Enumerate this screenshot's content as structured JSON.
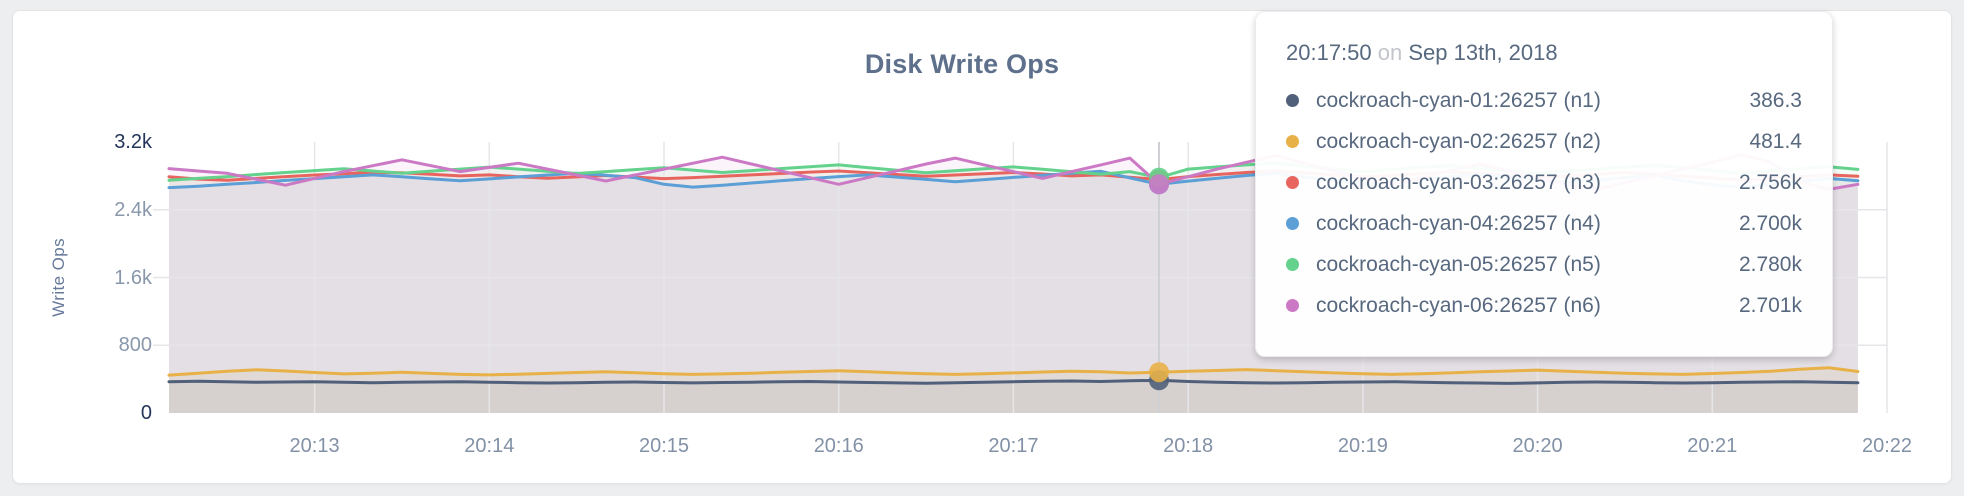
{
  "page": {
    "background": "#edeef0"
  },
  "card": {
    "title": "Disk Write Ops"
  },
  "chart": {
    "y_axis_label": "Write Ops",
    "y_ticks": [
      {
        "label": "3.2k",
        "value": 3200,
        "strong": true,
        "grid": false
      },
      {
        "label": "2.4k",
        "value": 2400,
        "strong": false,
        "grid": true
      },
      {
        "label": "1.6k",
        "value": 1600,
        "strong": false,
        "grid": true
      },
      {
        "label": "800",
        "value": 800,
        "strong": false,
        "grid": true
      },
      {
        "label": "0",
        "value": 0,
        "strong": true,
        "grid": false
      }
    ],
    "x_ticks": [
      {
        "label": "20:13",
        "t": 780
      },
      {
        "label": "20:14",
        "t": 840
      },
      {
        "label": "20:15",
        "t": 900
      },
      {
        "label": "20:16",
        "t": 960
      },
      {
        "label": "20:17",
        "t": 1020
      },
      {
        "label": "20:18",
        "t": 1080
      },
      {
        "label": "20:19",
        "t": 1140
      },
      {
        "label": "20:20",
        "t": 1200
      },
      {
        "label": "20:21",
        "t": 1260
      },
      {
        "label": "20:22",
        "t": 1320
      }
    ],
    "colors": {
      "grid": "#e6e6e9",
      "hover_line": "#cfd0d4",
      "title": "#5e708b",
      "tick_strong": "#24355b",
      "tick_light": "#8997ab"
    }
  },
  "tooltip": {
    "time": "20:17:50",
    "conjunction": "on",
    "date": "Sep 13th, 2018",
    "rows": [
      {
        "label": "cockroach-cyan-01:26257 (n1)",
        "value": "386.3"
      },
      {
        "label": "cockroach-cyan-02:26257 (n2)",
        "value": "481.4"
      },
      {
        "label": "cockroach-cyan-03:26257 (n3)",
        "value": "2.756k"
      },
      {
        "label": "cockroach-cyan-04:26257 (n4)",
        "value": "2.700k"
      },
      {
        "label": "cockroach-cyan-05:26257 (n5)",
        "value": "2.780k"
      },
      {
        "label": "cockroach-cyan-06:26257 (n6)",
        "value": "2.701k"
      }
    ]
  },
  "chart_data": {
    "type": "line",
    "title": "Disk Write Ops",
    "xlabel": "",
    "ylabel": "Write Ops",
    "ylim": [
      0,
      3200
    ],
    "grid": true,
    "legend_position": "tooltip",
    "x_unit": "seconds after 20:00 on Sep 13th, 2018",
    "x_domain": [
      730,
      1320
    ],
    "x_start": 730,
    "x_step": 10,
    "hover_t": 1070,
    "hover_index": 34,
    "series": [
      {
        "id": "n1",
        "name": "cockroach-cyan-01:26257 (n1)",
        "color": "#51607a",
        "fill_opacity": 0.09,
        "values": [
          370,
          374,
          368,
          362,
          366,
          370,
          364,
          358,
          362,
          366,
          370,
          364,
          358,
          354,
          358,
          362,
          366,
          360,
          356,
          360,
          364,
          368,
          372,
          366,
          360,
          356,
          352,
          358,
          364,
          370,
          374,
          378,
          372,
          380,
          386.3,
          372,
          364,
          358,
          354,
          358,
          362,
          366,
          370,
          364,
          358,
          354,
          350,
          356,
          362,
          366,
          362,
          358,
          354,
          358,
          362,
          366,
          370,
          364,
          358
        ]
      },
      {
        "id": "n2",
        "name": "cockroach-cyan-02:26257 (n2)",
        "color": "#e8b148",
        "fill_opacity": 0.1,
        "values": [
          448,
          470,
          492,
          510,
          496,
          478,
          462,
          470,
          480,
          468,
          456,
          450,
          458,
          468,
          478,
          486,
          476,
          464,
          456,
          462,
          470,
          480,
          490,
          498,
          486,
          474,
          464,
          456,
          464,
          474,
          484,
          494,
          486,
          472,
          481.4,
          492,
          502,
          512,
          500,
          486,
          474,
          464,
          456,
          464,
          474,
          486,
          496,
          506,
          494,
          482,
          470,
          462,
          456,
          466,
          478,
          492,
          516,
          534,
          490
        ]
      },
      {
        "id": "n3",
        "name": "cockroach-cyan-03:26257 (n3)",
        "color": "#e8655f",
        "fill_opacity": 0.08,
        "values": [
          2790,
          2762,
          2748,
          2770,
          2792,
          2810,
          2826,
          2842,
          2836,
          2820,
          2800,
          2812,
          2790,
          2772,
          2788,
          2804,
          2786,
          2768,
          2780,
          2796,
          2812,
          2828,
          2844,
          2858,
          2838,
          2816,
          2796,
          2810,
          2826,
          2840,
          2822,
          2800,
          2812,
          2784,
          2756,
          2792,
          2816,
          2840,
          2858,
          2836,
          2810,
          2790,
          2806,
          2826,
          2846,
          2828,
          2804,
          2782,
          2796,
          2818,
          2840,
          2820,
          2796,
          2774,
          2752,
          2768,
          2790,
          2812,
          2796
        ]
      },
      {
        "id": "n4",
        "name": "cockroach-cyan-04:26257 (n4)",
        "color": "#5b9fd6",
        "fill_opacity": 0.08,
        "values": [
          2662,
          2678,
          2700,
          2722,
          2746,
          2768,
          2790,
          2812,
          2790,
          2764,
          2742,
          2764,
          2788,
          2810,
          2832,
          2808,
          2780,
          2700,
          2668,
          2690,
          2716,
          2742,
          2768,
          2792,
          2812,
          2786,
          2758,
          2730,
          2756,
          2782,
          2806,
          2830,
          2854,
          2776,
          2700,
          2738,
          2772,
          2804,
          2830,
          2788,
          2742,
          2700,
          2730,
          2762,
          2792,
          2818,
          2788,
          2754,
          2722,
          2750,
          2780,
          2808,
          2742,
          2696,
          2664,
          2700,
          2736,
          2770,
          2742
        ]
      },
      {
        "id": "n5",
        "name": "cockroach-cyan-05:26257 (n5)",
        "color": "#64d18c",
        "fill_opacity": 0.08,
        "values": [
          2748,
          2770,
          2792,
          2816,
          2840,
          2862,
          2884,
          2858,
          2832,
          2856,
          2880,
          2904,
          2880,
          2854,
          2828,
          2850,
          2874,
          2896,
          2868,
          2840,
          2862,
          2886,
          2908,
          2930,
          2898,
          2866,
          2838,
          2860,
          2884,
          2906,
          2878,
          2848,
          2820,
          2850,
          2780,
          2880,
          2906,
          2930,
          2952,
          2916,
          2880,
          2850,
          2876,
          2900,
          2924,
          2892,
          2860,
          2832,
          2856,
          2880,
          2904,
          2928,
          2896,
          2862,
          2832,
          2858,
          2884,
          2908,
          2876
        ]
      },
      {
        "id": "n6",
        "name": "cockroach-cyan-06:26257 (n6)",
        "color": "#cc79c5",
        "fill_opacity": 0.08,
        "values": [
          2886,
          2858,
          2830,
          2760,
          2690,
          2770,
          2850,
          2920,
          2990,
          2920,
          2850,
          2900,
          2950,
          2880,
          2810,
          2740,
          2810,
          2880,
          2950,
          3020,
          2940,
          2860,
          2780,
          2700,
          2780,
          2860,
          2940,
          3010,
          2930,
          2850,
          2770,
          2850,
          2930,
          3010,
          2701,
          2790,
          2880,
          2960,
          3040,
          2950,
          2860,
          2770,
          2700,
          2780,
          2860,
          2940,
          2860,
          2780,
          2700,
          2640,
          2720,
          2800,
          2880,
          2960,
          3050,
          2960,
          2730,
          2640,
          2700
        ]
      }
    ]
  }
}
